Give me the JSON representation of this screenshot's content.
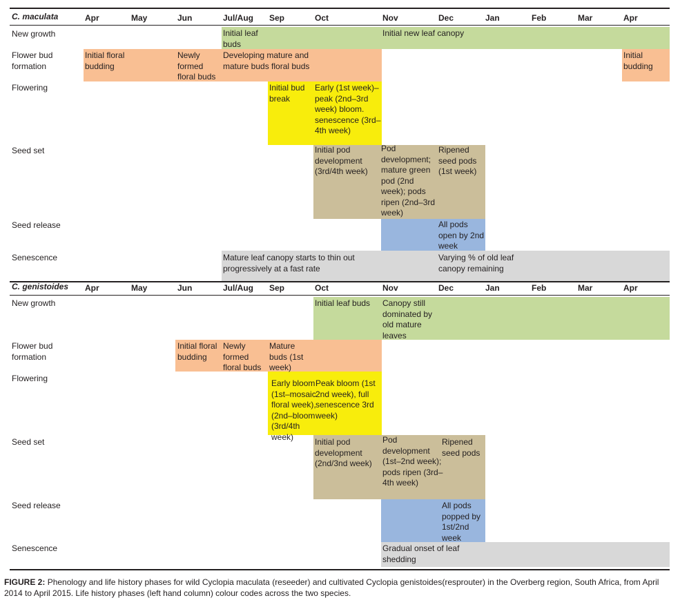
{
  "months": [
    "Apr",
    "May",
    "Jun",
    "Jul/Aug",
    "Sep",
    "Oct",
    "Nov",
    "Dec",
    "Jan",
    "Feb",
    "Mar",
    "Apr"
  ],
  "species1": {
    "name": "C. maculata",
    "phases": [
      "New growth",
      "Flower bud formation",
      "Flowering",
      "Seed set",
      "Seed release",
      "Senescence"
    ],
    "cells": {
      "ng_a": "Initial leaf buds",
      "ng_b": "Initial new leaf canopy",
      "fb_a": "Initial floral budding",
      "fb_b": "Newly formed floral buds",
      "fb_c": "Developing mature and mature buds floral buds",
      "fb_d": "Initial budding",
      "fl_a": "Initial bud break",
      "fl_b": "Early (1st week)– peak (2nd–3rd week) bloom. senescence (3rd–4th week)",
      "ss_a": "Initial pod development (3rd/4th week)",
      "ss_b": "Pod development; mature green pod (2nd week); pods ripen (2nd–3rd week)",
      "ss_c": "Ripened seed pods (1st week)",
      "sr_a": "All pods open by 2nd week",
      "se_a": "Mature leaf canopy starts to thin out progressively at a fast rate",
      "se_b": "Varying % of old leaf canopy remaining"
    }
  },
  "species2": {
    "name": "C. genistoides",
    "phases": [
      "New growth",
      "Flower bud formation",
      "Flowering",
      "Seed set",
      "Seed release",
      "Senescence"
    ],
    "cells": {
      "ng_a": "Initial leaf buds",
      "ng_b": "Canopy still dominated by old mature leaves",
      "fb_a": "Initial floral budding",
      "fb_b": "Newly formed floral buds",
      "fb_c": "Mature buds (1st week)",
      "fl_a": "Early bloom (1st–mosaic floral week), (2nd–bloom (3rd/4th week)",
      "fl_b": "Peak bloom (1st 2nd week), full senescence 3rd week)",
      "ss_a": "Initial pod development (2nd/3nd week)",
      "ss_b": "Pod development (1st–2nd week); pods ripen (3rd–4th week)",
      "ss_c": "Ripened seed pods",
      "sr_a": "All pods popped by 1st/2nd week",
      "se_a": "Gradual onset of leaf shedding"
    }
  },
  "caption": {
    "label": "FIGURE 2:",
    "text": "Phenology and life history phases for wild Cyclopia maculata (reseeder) and cultivated Cyclopia genistoides(resprouter) in the Overberg region, South Africa, from April 2014 to April 2015. Life history phases (left hand column) colour codes across the two species."
  },
  "colors": {
    "new_growth": "#c5da9c",
    "flower_bud": "#f9bf93",
    "flowering": "#f8ed0c",
    "seed_set": "#cbbe9a",
    "seed_release": "#99b6de",
    "senescence": "#d8d8d8"
  }
}
